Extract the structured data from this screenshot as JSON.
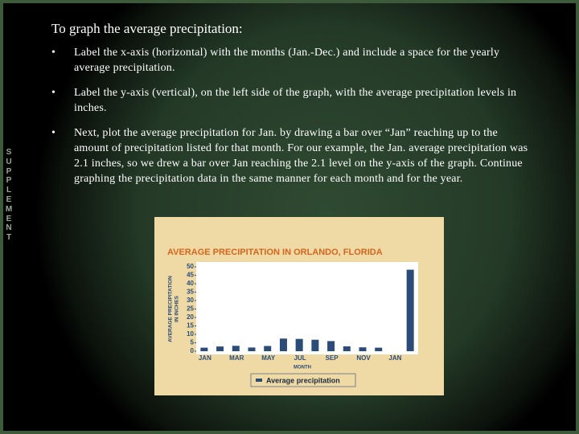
{
  "slide": {
    "side_label": "SUPPLEMENT",
    "title": "To graph the average precipitation:",
    "bullets": [
      "Label the x-axis (horizontal) with the months (Jan.-Dec.) and include a space for the yearly average precipitation.",
      "Label the y-axis (vertical), on the left side of the graph, with the average precipitation levels in inches.",
      "Next, plot the average precipitation for Jan. by drawing a bar over “Jan” reaching up to the amount of precipitation listed for that month.  For our example, the Jan. average precipitation was 2.1 inches, so we drew a bar over Jan reaching the 2.1 level on the y-axis of the graph.  Continue graphing the precipitation data in the same manner for each month and for the year."
    ]
  },
  "chart_data": {
    "type": "bar",
    "title": "AVERAGE PRECIPITATION IN ORLANDO, FLORIDA",
    "y_label": [
      "AVERAGE PRECIPITATION",
      "IN INCHES"
    ],
    "x_label": "MONTH",
    "categories": [
      "JAN",
      null,
      "MAR",
      null,
      "MAY",
      null,
      "JUL",
      null,
      "SEP",
      null,
      "NOV",
      null,
      "JAN",
      null
    ],
    "series": [
      {
        "name": "Average precipitation",
        "color": "#2b4c78",
        "values": [
          2.1,
          2.8,
          3.2,
          2.2,
          3.1,
          7.5,
          7.3,
          6.8,
          6.0,
          2.9,
          2.3,
          2.1,
          null,
          48.3
        ]
      }
    ],
    "ylim": [
      0,
      50
    ],
    "yticks": [
      0,
      5,
      10,
      15,
      20,
      25,
      30,
      35,
      40,
      45,
      50
    ]
  }
}
